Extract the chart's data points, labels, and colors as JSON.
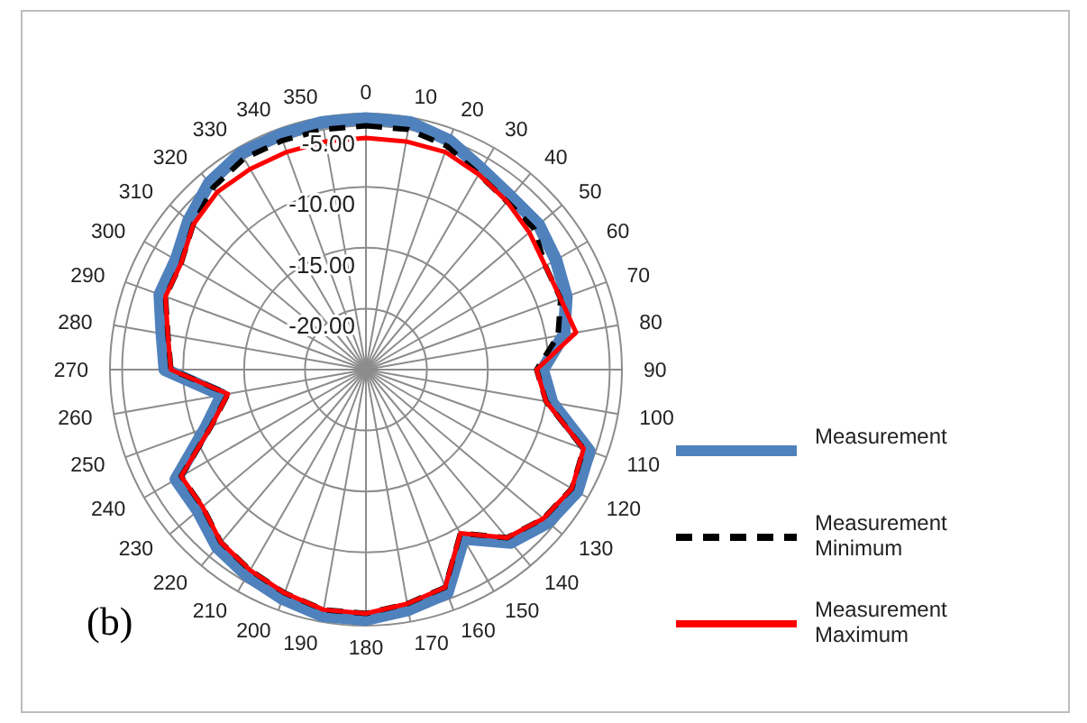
{
  "chart_data": {
    "type": "radar",
    "categories": [
      "0",
      "10",
      "20",
      "30",
      "40",
      "50",
      "60",
      "70",
      "80",
      "90",
      "100",
      "110",
      "120",
      "130",
      "140",
      "150",
      "160",
      "170",
      "180",
      "190",
      "200",
      "210",
      "220",
      "230",
      "240",
      "250",
      "260",
      "270",
      "280",
      "290",
      "300",
      "310",
      "320",
      "330",
      "340",
      "350"
    ],
    "ylim": [
      -25,
      -4
    ],
    "yticks": [
      {
        "value": -20,
        "label": "-20.00"
      },
      {
        "value": -15,
        "label": "-15.00"
      },
      {
        "value": -10,
        "label": "-10.00"
      },
      {
        "value": -5,
        "label": "-5.00"
      }
    ],
    "grid": true,
    "legend": "right",
    "marker": "none",
    "series": [
      {
        "name": "Measurement",
        "color": "#4f81bd",
        "line_style": "solid",
        "values": [
          -4.4,
          -4.4,
          -5,
          -6,
          -6.5,
          -6.5,
          -7,
          -7.5,
          -8.5,
          -10.5,
          -9.5,
          -5.5,
          -5,
          -5.5,
          -6.5,
          -9,
          -5.5,
          -5,
          -4.5,
          -4.5,
          -5,
          -5.5,
          -6,
          -7,
          -7,
          -11,
          -13,
          -8.5,
          -8,
          -7,
          -7,
          -6,
          -5,
          -4.5,
          -4.5,
          -4.4
        ]
      },
      {
        "name": "Measurement Minimum",
        "color": "#000000",
        "line_style": "dashed",
        "values": [
          -5,
          -5,
          -5.5,
          -6.5,
          -7,
          -7,
          -8,
          -8,
          -9,
          -11,
          -10,
          -6,
          -5.5,
          -6,
          -7,
          -9.5,
          -6,
          -5.5,
          -5,
          -5,
          -5.5,
          -6,
          -6.5,
          -7.5,
          -7.5,
          -11.5,
          -13.5,
          -9,
          -8.5,
          -7.5,
          -7.5,
          -6.5,
          -5.5,
          -5,
          -5,
          -5
        ]
      },
      {
        "name": "Measurement Maximum",
        "color": "#ff0000",
        "line_style": "solid",
        "values": [
          -6,
          -6,
          -6,
          -6.5,
          -7,
          -7.5,
          -8,
          -8,
          -7.5,
          -11,
          -10,
          -6,
          -5.5,
          -6,
          -7,
          -9.5,
          -6,
          -5.5,
          -5,
          -5,
          -5.5,
          -6,
          -6.5,
          -7.5,
          -7.5,
          -11.5,
          -13.5,
          -9,
          -8.5,
          -7.5,
          -7.5,
          -6.5,
          -6,
          -6,
          -6,
          -6
        ]
      }
    ],
    "annotations": [
      "(b)"
    ]
  }
}
